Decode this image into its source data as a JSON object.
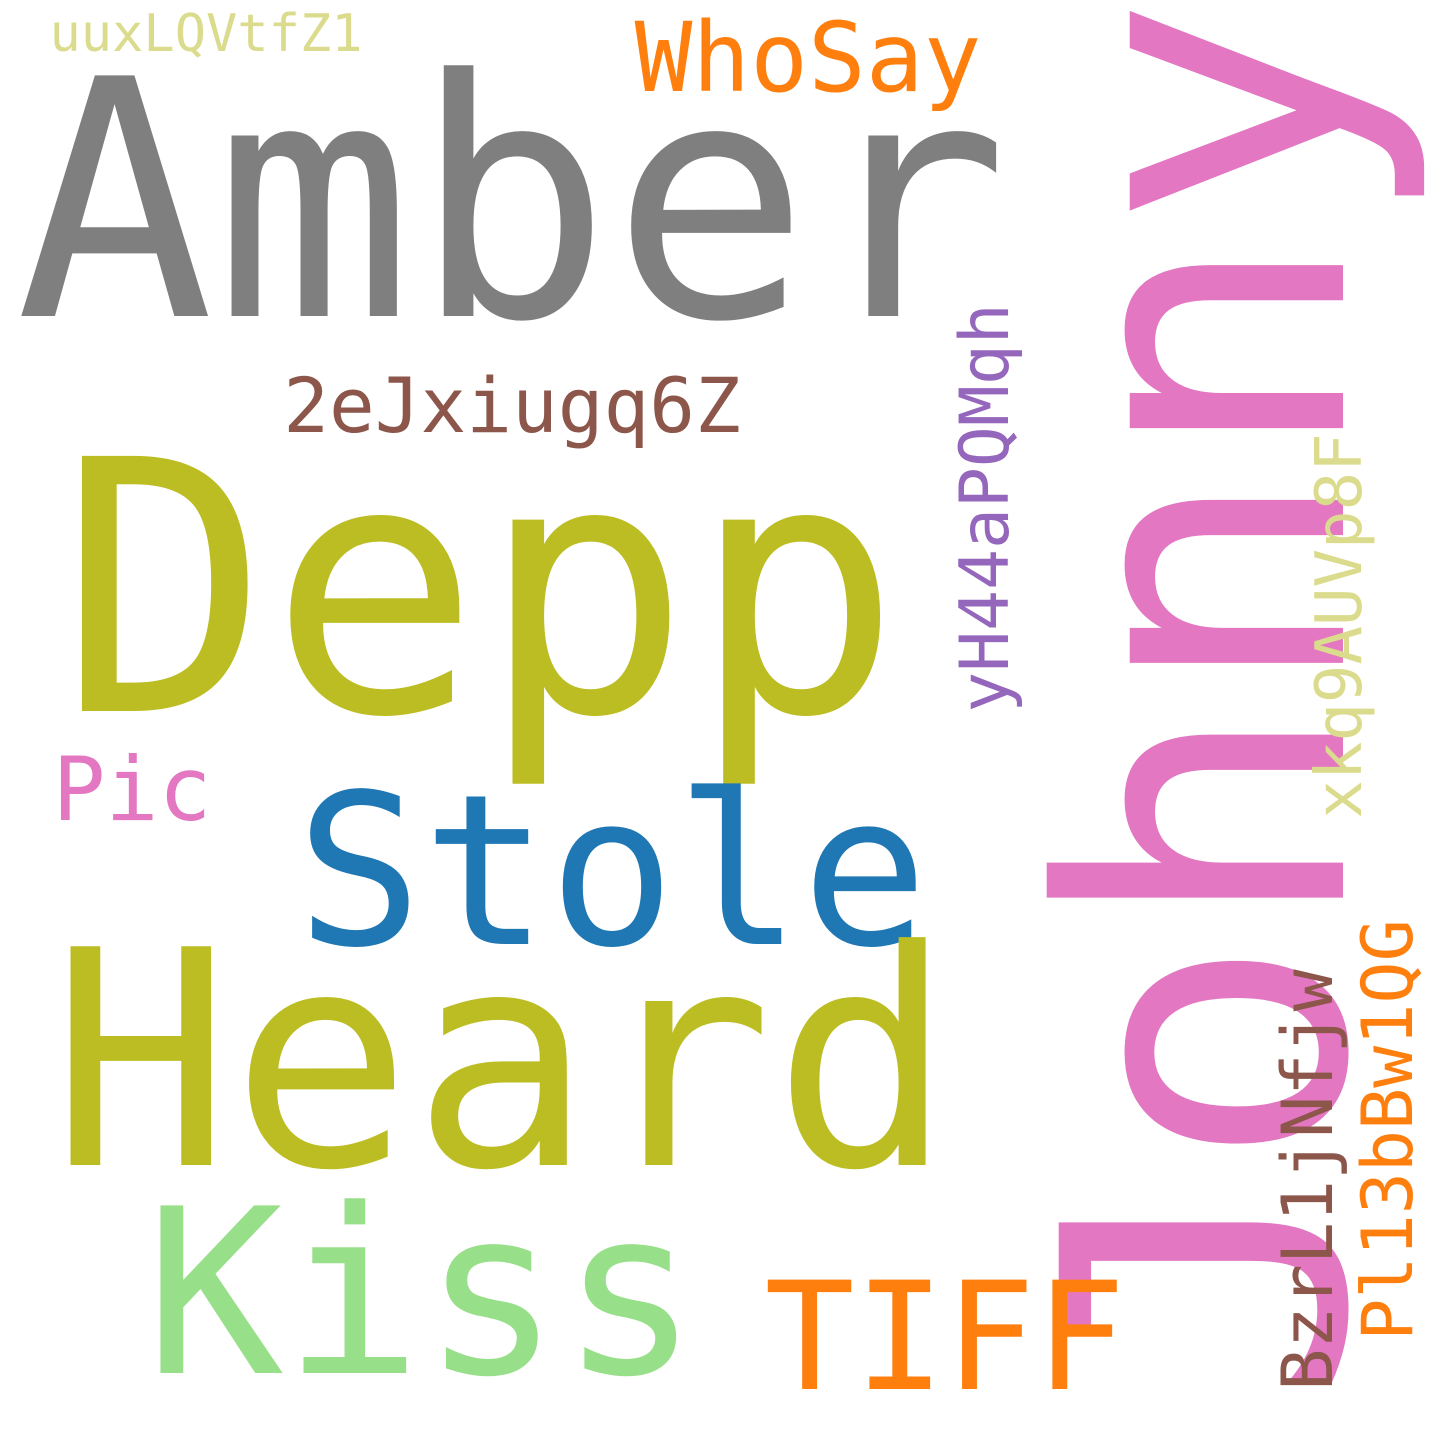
{
  "words": [
    {
      "text": "uuxLQVtfZ1",
      "color": "#dbdb8d",
      "orientation": "horizontal"
    },
    {
      "text": "WhoSay",
      "color": "#ff7f0e",
      "orientation": "horizontal"
    },
    {
      "text": "Amber",
      "color": "#7f7f7f",
      "orientation": "horizontal"
    },
    {
      "text": "Johnny",
      "color": "#e377c2",
      "orientation": "vertical"
    },
    {
      "text": "2eJxiugq6Z",
      "color": "#8c564b",
      "orientation": "horizontal"
    },
    {
      "text": "yH44aPQMqh",
      "color": "#9467bd",
      "orientation": "vertical"
    },
    {
      "text": "Depp",
      "color": "#bcbd22",
      "orientation": "horizontal"
    },
    {
      "text": "xkq9AUVp8F",
      "color": "#dbdb8d",
      "orientation": "vertical"
    },
    {
      "text": "Pic",
      "color": "#e377c2",
      "orientation": "horizontal"
    },
    {
      "text": "Stole",
      "color": "#1f77b4",
      "orientation": "horizontal"
    },
    {
      "text": "Heard",
      "color": "#bcbd22",
      "orientation": "horizontal"
    },
    {
      "text": "BzrL1jNfjw",
      "color": "#8c564b",
      "orientation": "vertical"
    },
    {
      "text": "Pl13bBw1QG",
      "color": "#ff7f0e",
      "orientation": "vertical"
    },
    {
      "text": "Kiss",
      "color": "#98df8a",
      "orientation": "horizontal"
    },
    {
      "text": "TIFF",
      "color": "#ff7f0e",
      "orientation": "horizontal"
    }
  ]
}
